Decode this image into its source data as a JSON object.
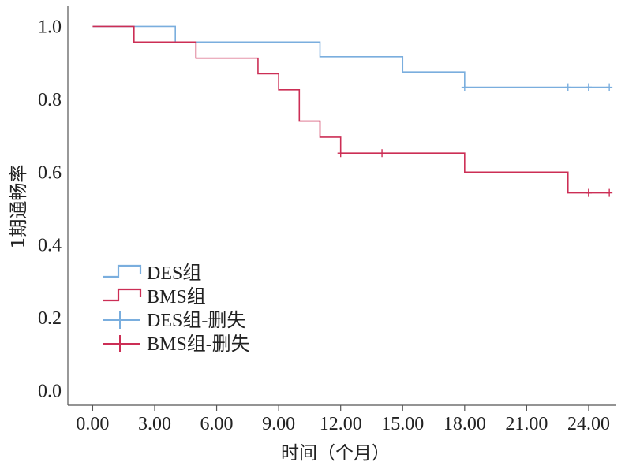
{
  "chart_data": {
    "type": "line",
    "subtype": "kaplan-meier-step",
    "xlabel": "时间（个月）",
    "ylabel": "1期通畅率",
    "xlim": [
      -1.2,
      25.3
    ],
    "ylim": [
      -0.04,
      1.055
    ],
    "x_ticks": [
      0,
      3,
      6,
      9,
      12,
      15,
      18,
      21,
      24
    ],
    "x_tick_labels": [
      "0.00",
      "3.00",
      "6.00",
      "9.00",
      "12.00",
      "15.00",
      "18.00",
      "21.00",
      "24.00"
    ],
    "y_ticks": [
      0,
      0.2,
      0.4,
      0.6,
      0.8,
      1.0
    ],
    "y_tick_labels": [
      "0.0",
      "0.2",
      "0.4",
      "0.6",
      "0.8",
      "1.0"
    ],
    "grid": false,
    "legend_position": "bottom-left",
    "series": [
      {
        "name": "DES组",
        "color": "#7aaede",
        "steps": [
          [
            0,
            1.0
          ],
          [
            4,
            0.957
          ],
          [
            11,
            0.917
          ],
          [
            15,
            0.875
          ],
          [
            18,
            0.833
          ],
          [
            25,
            0.833
          ]
        ],
        "censored": [
          [
            18,
            0.833
          ],
          [
            23,
            0.833
          ],
          [
            24,
            0.833
          ],
          [
            24,
            0.833
          ],
          [
            25,
            0.833
          ]
        ]
      },
      {
        "name": "BMS组",
        "color": "#cc2e55",
        "steps": [
          [
            0,
            1.0
          ],
          [
            2,
            0.957
          ],
          [
            5,
            0.913
          ],
          [
            8,
            0.87
          ],
          [
            9,
            0.826
          ],
          [
            10,
            0.74
          ],
          [
            11,
            0.696
          ],
          [
            12,
            0.652
          ],
          [
            18,
            0.6
          ],
          [
            23,
            0.543
          ],
          [
            25,
            0.543
          ]
        ],
        "censored": [
          [
            12,
            0.652
          ],
          [
            14,
            0.652
          ],
          [
            24,
            0.543
          ],
          [
            24,
            0.543
          ],
          [
            25,
            0.543
          ]
        ]
      }
    ],
    "legend": [
      {
        "label": "DES组",
        "symbol": "step",
        "color": "#7aaede"
      },
      {
        "label": "BMS组",
        "symbol": "step",
        "color": "#cc2e55"
      },
      {
        "label": "DES组-删失",
        "symbol": "plus",
        "color": "#7aaede"
      },
      {
        "label": "BMS组-删失",
        "symbol": "plus",
        "color": "#cc2e55"
      }
    ]
  }
}
